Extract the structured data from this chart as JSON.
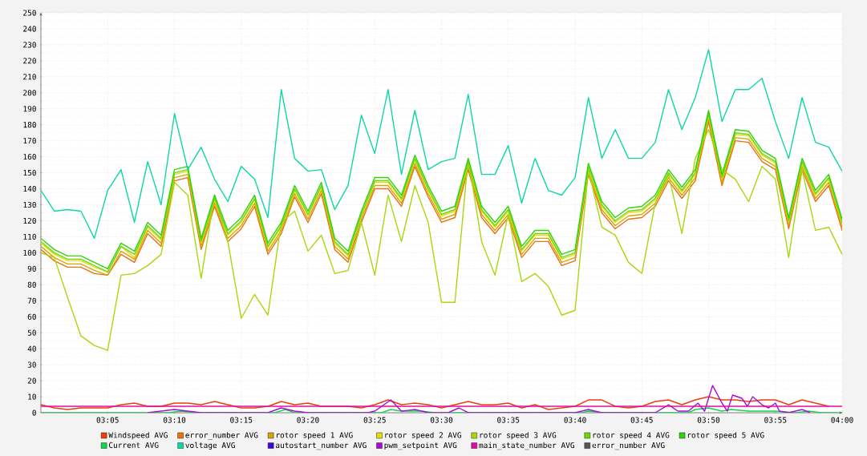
{
  "chart_data": {
    "type": "line",
    "xlim": [
      3.0,
      4.0
    ],
    "ylim": [
      0,
      250
    ],
    "xticks": [
      {
        "value": 3.0833,
        "label": "03:05"
      },
      {
        "value": 3.1667,
        "label": "03:10"
      },
      {
        "value": 3.25,
        "label": "03:15"
      },
      {
        "value": 3.3333,
        "label": "03:20"
      },
      {
        "value": 3.4167,
        "label": "03:25"
      },
      {
        "value": 3.5,
        "label": "03:30"
      },
      {
        "value": 3.5833,
        "label": "03:35"
      },
      {
        "value": 3.6667,
        "label": "03:40"
      },
      {
        "value": 3.75,
        "label": "03:45"
      },
      {
        "value": 3.8333,
        "label": "03:50"
      },
      {
        "value": 3.9167,
        "label": "03:55"
      },
      {
        "value": 4.0,
        "label": "04:00"
      }
    ],
    "yticks": [
      0,
      10,
      20,
      30,
      40,
      50,
      60,
      70,
      80,
      90,
      100,
      110,
      120,
      130,
      140,
      150,
      160,
      170,
      180,
      190,
      200,
      210,
      220,
      230,
      240,
      250
    ],
    "grid": true,
    "legend": "bottom",
    "marker": "none",
    "line_style": "solid",
    "x": [
      3.0,
      3.0167,
      3.0333,
      3.05,
      3.0667,
      3.0833,
      3.1,
      3.1167,
      3.1333,
      3.15,
      3.1667,
      3.1833,
      3.2,
      3.2167,
      3.2333,
      3.25,
      3.2667,
      3.2833,
      3.3,
      3.3167,
      3.3333,
      3.35,
      3.3667,
      3.3833,
      3.4,
      3.4167,
      3.4333,
      3.45,
      3.4667,
      3.4833,
      3.5,
      3.5167,
      3.5333,
      3.55,
      3.5667,
      3.5833,
      3.6,
      3.6167,
      3.6333,
      3.65,
      3.6667,
      3.6833,
      3.7,
      3.7167,
      3.7333,
      3.75,
      3.7667,
      3.7833,
      3.8,
      3.8167,
      3.8333,
      3.85,
      3.8667,
      3.8833,
      3.9,
      3.9167,
      3.9333,
      3.95,
      3.9667,
      3.9833,
      4.0
    ],
    "series": [
      {
        "name": "Windspeed AVG",
        "color": "#ea3e0c",
        "values": [
          5,
          3,
          2,
          3,
          3,
          3,
          5,
          6,
          4,
          4,
          6,
          6,
          5,
          7,
          5,
          3,
          3,
          4,
          7,
          5,
          6,
          4,
          null,
          4,
          3,
          5,
          8,
          5,
          6,
          5,
          3,
          5,
          7,
          5,
          5,
          6,
          3,
          5,
          2,
          3,
          4,
          8,
          8,
          4,
          3,
          4,
          7,
          8,
          5,
          8,
          10,
          8,
          8,
          7,
          8,
          8,
          5,
          8,
          6,
          4,
          null
        ]
      },
      {
        "name": "error_number AVG",
        "color": "#e8720c",
        "values": [
          102,
          95,
          91,
          91,
          87,
          86,
          99,
          94,
          112,
          104,
          145,
          147,
          102,
          129,
          107,
          115,
          129,
          99,
          112,
          135,
          119,
          137,
          102,
          94,
          119,
          140,
          140,
          129,
          154,
          135,
          119,
          122,
          152,
          122,
          112,
          122,
          97,
          107,
          107,
          92,
          95,
          149,
          125,
          115,
          121,
          122,
          129,
          145,
          134,
          145,
          182,
          142,
          170,
          169,
          157,
          152,
          115,
          152,
          132,
          142,
          114
        ]
      },
      {
        "name": "rotor speed 1 AVG",
        "color": "#d8a20c",
        "values": [
          104,
          97,
          93,
          93,
          89,
          86,
          101,
          96,
          114,
          106,
          147,
          149,
          104,
          131,
          109,
          117,
          131,
          101,
          114,
          137,
          121,
          139,
          104,
          96,
          121,
          142,
          142,
          131,
          156,
          137,
          121,
          124,
          154,
          124,
          114,
          124,
          99,
          109,
          109,
          94,
          97,
          151,
          127,
          117,
          123,
          124,
          131,
          147,
          136,
          147,
          184,
          144,
          172,
          171,
          159,
          154,
          117,
          154,
          134,
          144,
          116
        ]
      },
      {
        "name": "rotor speed 2 AVG",
        "color": "#e4dc0c",
        "values": [
          106,
          99,
          95,
          95,
          91,
          88,
          104,
          97,
          116,
          108,
          149,
          151,
          106,
          133,
          111,
          119,
          133,
          103,
          116,
          139,
          123,
          141,
          106,
          98,
          123,
          144,
          144,
          133,
          158,
          139,
          123,
          126,
          156,
          126,
          116,
          126,
          101,
          111,
          111,
          96,
          99,
          153,
          129,
          119,
          125,
          126,
          133,
          149,
          138,
          149,
          186,
          146,
          174,
          173,
          161,
          156,
          119,
          156,
          136,
          146,
          118
        ]
      },
      {
        "name": "rotor speed 3 AVG",
        "color": "#a8d80c",
        "values": [
          100,
          97,
          72,
          48,
          42,
          39,
          86,
          87,
          92,
          99,
          144,
          136,
          84,
          136,
          107,
          59,
          74,
          61,
          119,
          126,
          101,
          111,
          87,
          89,
          119,
          86,
          136,
          107,
          142,
          119,
          69,
          69,
          159,
          107,
          86,
          124,
          82,
          87,
          79,
          61,
          64,
          152,
          116,
          111,
          94,
          87,
          131,
          149,
          112,
          159,
          177,
          152,
          146,
          132,
          154,
          146,
          97,
          152,
          114,
          116,
          99
        ]
      },
      {
        "name": "rotor speed 4 AVG",
        "color": "#6cd80c",
        "values": [
          107,
          100,
          96,
          96,
          92,
          88,
          104,
          99,
          117,
          109,
          150,
          152,
          107,
          134,
          112,
          120,
          134,
          104,
          117,
          140,
          124,
          142,
          107,
          99,
          124,
          145,
          145,
          134,
          159,
          140,
          124,
          127,
          157,
          127,
          117,
          127,
          102,
          112,
          112,
          97,
          100,
          154,
          130,
          120,
          126,
          127,
          134,
          150,
          139,
          150,
          187,
          147,
          175,
          174,
          162,
          157,
          120,
          157,
          137,
          147,
          119
        ]
      },
      {
        "name": "rotor speed 5 AVG",
        "color": "#30d20c",
        "values": [
          109,
          102,
          98,
          98,
          94,
          90,
          106,
          101,
          119,
          111,
          152,
          154,
          109,
          136,
          114,
          122,
          136,
          106,
          119,
          142,
          126,
          144,
          109,
          101,
          126,
          147,
          147,
          136,
          161,
          142,
          126,
          129,
          159,
          129,
          119,
          129,
          104,
          114,
          114,
          99,
          102,
          156,
          132,
          122,
          128,
          129,
          136,
          152,
          141,
          152,
          189,
          149,
          177,
          176,
          164,
          159,
          122,
          159,
          139,
          149,
          121
        ]
      },
      {
        "name": "Current AVG",
        "color": "#0cd84a",
        "x": [
          3.0,
          3.1583,
          3.175,
          3.1917,
          3.2917,
          3.305,
          3.3167,
          3.425,
          3.4367,
          3.45,
          3.475,
          3.4917,
          3.675,
          3.6833,
          3.7,
          3.8083,
          3.8167,
          3.8333,
          3.85,
          3.8617,
          3.8833,
          3.9167,
          3.9417,
          3.9583,
          3.975,
          4.0
        ],
        "values": [
          0,
          0,
          1,
          0,
          0,
          2,
          0,
          0,
          2,
          1,
          1,
          0,
          0,
          1,
          0,
          0,
          2,
          3,
          1,
          2,
          1,
          1,
          0,
          1,
          0,
          0
        ]
      },
      {
        "name": "voltage AVG",
        "color": "#0cd8a6",
        "values": [
          139,
          126,
          127,
          126,
          109,
          139,
          152,
          119,
          157,
          130,
          187,
          152,
          166,
          146,
          132,
          154,
          146,
          122,
          202,
          159,
          151,
          152,
          127,
          142,
          186,
          162,
          202,
          149,
          189,
          152,
          157,
          159,
          199,
          149,
          149,
          167,
          131,
          159,
          139,
          136,
          147,
          197,
          159,
          177,
          159,
          159,
          169,
          202,
          177,
          197,
          227,
          182,
          202,
          202,
          209,
          182,
          159,
          197,
          169,
          166,
          151
        ]
      },
      {
        "name": "autostart_number AVG",
        "color": "#3c0cd8",
        "values": [
          null,
          null,
          null,
          null,
          null,
          null,
          null,
          null,
          null,
          null,
          null,
          null,
          null,
          null,
          null,
          null,
          null,
          null,
          null,
          null,
          null,
          null,
          null,
          null,
          null,
          null,
          null,
          null,
          null,
          null,
          null,
          null,
          null,
          null,
          null,
          null,
          null,
          null,
          null,
          null,
          null,
          null,
          null,
          null,
          null,
          null,
          null,
          null,
          null,
          null,
          null,
          null,
          null,
          null,
          null,
          null,
          null,
          null,
          null,
          null,
          null
        ]
      },
      {
        "name": "pwm_setpoint AVG",
        "color": "#a80cd8",
        "x": [
          3.1333,
          3.15,
          3.1667,
          3.1833,
          3.2,
          3.2833,
          3.3,
          3.3167,
          3.3333,
          3.4083,
          3.4167,
          3.4367,
          3.45,
          3.4667,
          3.4833,
          3.5083,
          3.5217,
          3.5333,
          3.6667,
          3.6833,
          3.7,
          3.7667,
          3.7833,
          3.795,
          3.8083,
          3.82,
          3.8283,
          3.8383,
          3.85,
          3.8567,
          3.8633,
          3.875,
          3.8817,
          3.8883,
          3.9,
          3.9083,
          3.9167,
          3.9217,
          3.9333,
          3.95,
          3.96
        ],
        "values": [
          0,
          1,
          2,
          1,
          0,
          0,
          3,
          1,
          0,
          0,
          1,
          8,
          1,
          2,
          0,
          0,
          3,
          0,
          0,
          2,
          0,
          0,
          5,
          1,
          1,
          6,
          1,
          17,
          6,
          1,
          11,
          9,
          4,
          10,
          5,
          3,
          6,
          1,
          0,
          2,
          0
        ]
      },
      {
        "name": "main_state_number AVG",
        "color": "#e00c9c",
        "x": [
          3.0,
          4.0
        ],
        "values": [
          4,
          4
        ]
      },
      {
        "name": "error_number AVG",
        "color": "#555555",
        "values": [
          null,
          null,
          null,
          null,
          null,
          null,
          null,
          null,
          null,
          null,
          null,
          null,
          null,
          null,
          null,
          null,
          null,
          null,
          null,
          null,
          null,
          null,
          null,
          null,
          null,
          null,
          null,
          null,
          null,
          null,
          null,
          null,
          null,
          null,
          null,
          null,
          null,
          null,
          null,
          null,
          null,
          null,
          null,
          null,
          null,
          null,
          null,
          null,
          null,
          null,
          null,
          null,
          null,
          null,
          null,
          null,
          null,
          null,
          null,
          null,
          null
        ]
      }
    ]
  }
}
